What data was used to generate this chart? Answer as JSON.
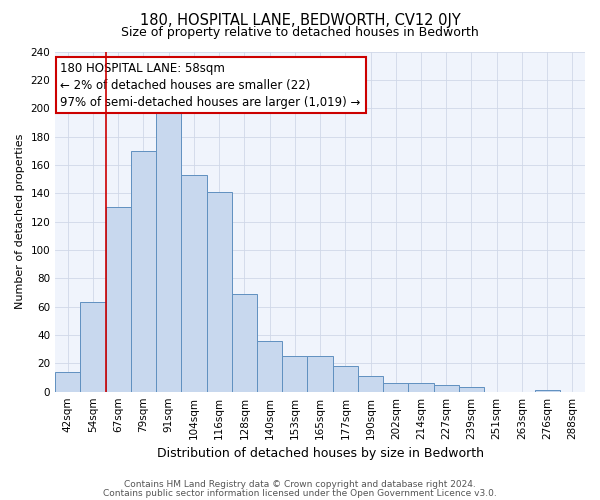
{
  "title": "180, HOSPITAL LANE, BEDWORTH, CV12 0JY",
  "subtitle": "Size of property relative to detached houses in Bedworth",
  "xlabel": "Distribution of detached houses by size in Bedworth",
  "ylabel": "Number of detached properties",
  "bin_labels": [
    "42sqm",
    "54sqm",
    "67sqm",
    "79sqm",
    "91sqm",
    "104sqm",
    "116sqm",
    "128sqm",
    "140sqm",
    "153sqm",
    "165sqm",
    "177sqm",
    "190sqm",
    "202sqm",
    "214sqm",
    "227sqm",
    "239sqm",
    "251sqm",
    "263sqm",
    "276sqm",
    "288sqm"
  ],
  "bar_heights": [
    14,
    63,
    130,
    170,
    198,
    153,
    141,
    69,
    36,
    25,
    25,
    18,
    11,
    6,
    6,
    5,
    3,
    0,
    0,
    1,
    0
  ],
  "bar_color": "#c8d8ee",
  "bar_edge_color": "#6090c0",
  "vline_color": "#cc0000",
  "vline_x": 1.5,
  "ylim": [
    0,
    240
  ],
  "yticks": [
    0,
    20,
    40,
    60,
    80,
    100,
    120,
    140,
    160,
    180,
    200,
    220,
    240
  ],
  "annotation_title": "180 HOSPITAL LANE: 58sqm",
  "annotation_line1": "← 2% of detached houses are smaller (22)",
  "annotation_line2": "97% of semi-detached houses are larger (1,019) →",
  "annotation_box_facecolor": "#ffffff",
  "annotation_box_edgecolor": "#cc0000",
  "footer1": "Contains HM Land Registry data © Crown copyright and database right 2024.",
  "footer2": "Contains public sector information licensed under the Open Government Licence v3.0.",
  "title_fontsize": 10.5,
  "subtitle_fontsize": 9,
  "xlabel_fontsize": 9,
  "ylabel_fontsize": 8,
  "tick_fontsize": 7.5,
  "annotation_fontsize": 8.5,
  "footer_fontsize": 6.5,
  "grid_color": "#d0d8e8",
  "bg_color": "#f0f4fc"
}
